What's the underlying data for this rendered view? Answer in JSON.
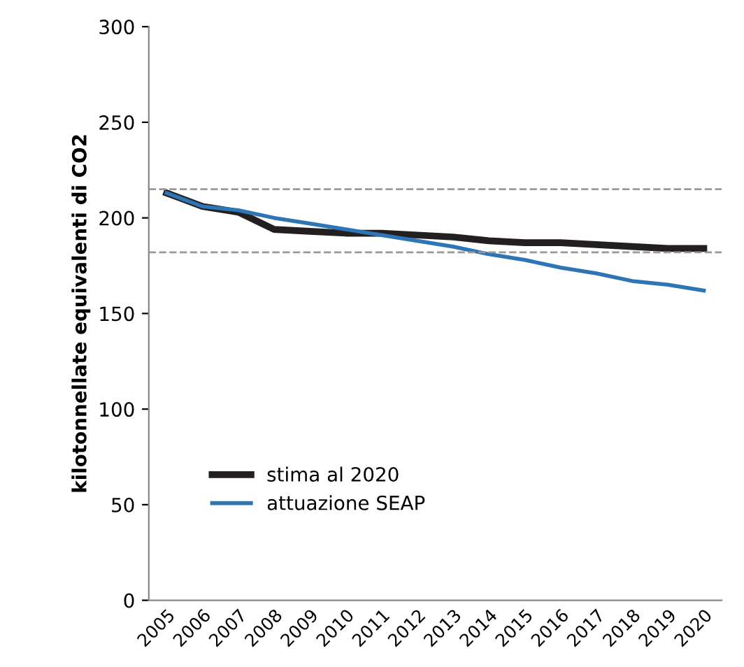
{
  "chart_data": {
    "type": "line",
    "ylabel": "kilotonnellate equivalenti di CO2",
    "categories": [
      "2005",
      "2006",
      "2007",
      "2008",
      "2009",
      "2010",
      "2011",
      "2012",
      "2013",
      "2014",
      "2015",
      "2016",
      "2017",
      "2018",
      "2019",
      "2020"
    ],
    "series": [
      {
        "name": "stima al 2020",
        "color": "#231f20",
        "values": [
          213,
          206,
          203,
          194,
          193,
          192,
          192,
          191,
          190,
          188,
          187,
          187,
          186,
          185,
          184,
          184
        ]
      },
      {
        "name": "attuazione SEAP",
        "color": "#2e75b6",
        "values": [
          213,
          206,
          204,
          200,
          197,
          194,
          191,
          188,
          185,
          181,
          178,
          174,
          171,
          167,
          165,
          162
        ]
      }
    ],
    "ylim": [
      0,
      300
    ],
    "yticks": [
      0,
      50,
      100,
      150,
      200,
      250,
      300
    ],
    "ref_lines": [
      {
        "axis": "y",
        "value": 215,
        "color": "#999999",
        "line_style": "dashed"
      },
      {
        "axis": "y",
        "value": 182,
        "color": "#999999",
        "line_style": "dashed"
      }
    ],
    "grid": false,
    "legend": "bottom left",
    "marker": "none",
    "line_style": "solid"
  }
}
